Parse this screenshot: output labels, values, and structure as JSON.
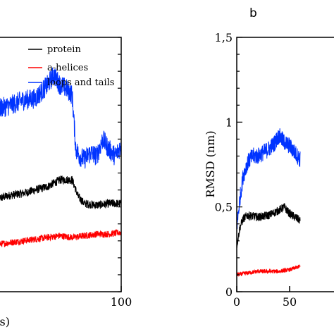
{
  "chart_data": [
    {
      "type": "line",
      "panel": "a",
      "title": "",
      "xlabel": "(ns)",
      "ylabel": "",
      "xlim": [
        0,
        100
      ],
      "ylim": [
        0,
        1.5
      ],
      "x_ticks": [
        100
      ],
      "x_tick_labels": [
        "100"
      ],
      "y_ticks": [],
      "y_tick_labels": [],
      "grid": false,
      "legend": {
        "placement": "top-right",
        "entries": [
          "protein",
          "a-helices",
          "loops and tails"
        ]
      },
      "series": [
        {
          "name": "protein",
          "color": "#000000",
          "x": [
            0,
            10,
            20,
            30,
            40,
            50,
            60,
            65,
            70,
            80,
            90,
            100
          ],
          "y": [
            0.55,
            0.57,
            0.58,
            0.6,
            0.62,
            0.66,
            0.66,
            0.56,
            0.52,
            0.51,
            0.52,
            0.52
          ],
          "noise": 0.025
        },
        {
          "name": "a-helices",
          "color": "#ff0000",
          "x": [
            0,
            10,
            20,
            30,
            40,
            50,
            60,
            70,
            80,
            90,
            100
          ],
          "y": [
            0.28,
            0.29,
            0.3,
            0.31,
            0.32,
            0.33,
            0.32,
            0.33,
            0.34,
            0.34,
            0.35
          ],
          "noise": 0.02
        },
        {
          "name": "loops and tails",
          "color": "#0033ff",
          "x": [
            0,
            10,
            20,
            30,
            40,
            45,
            50,
            55,
            60,
            63,
            66,
            70,
            75,
            80,
            85,
            90,
            95,
            100
          ],
          "y": [
            1.08,
            1.1,
            1.13,
            1.14,
            1.22,
            1.28,
            1.22,
            1.2,
            1.16,
            0.84,
            0.8,
            0.78,
            0.82,
            0.8,
            0.9,
            0.84,
            0.8,
            0.86
          ],
          "noise": 0.06
        }
      ]
    },
    {
      "type": "line",
      "panel": "b",
      "title": "",
      "xlabel": "",
      "ylabel": "RMSD (nm)",
      "xlim": [
        0,
        100
      ],
      "ylim": [
        0,
        1.5
      ],
      "x_ticks": [
        0,
        50
      ],
      "x_tick_labels": [
        "0",
        "50"
      ],
      "y_ticks": [
        0,
        0.5,
        1,
        1.5
      ],
      "y_tick_labels": [
        "0",
        "0,5",
        "1",
        "1,5"
      ],
      "grid": false,
      "series": [
        {
          "name": "protein",
          "color": "#000000",
          "x": [
            0,
            3,
            6,
            10,
            20,
            30,
            40,
            45,
            50,
            55,
            60
          ],
          "y": [
            0.27,
            0.38,
            0.43,
            0.45,
            0.44,
            0.45,
            0.48,
            0.5,
            0.46,
            0.44,
            0.42
          ],
          "noise": 0.025
        },
        {
          "name": "a-helices",
          "color": "#ff0000",
          "x": [
            0,
            10,
            20,
            30,
            40,
            50,
            60
          ],
          "y": [
            0.1,
            0.11,
            0.12,
            0.12,
            0.12,
            0.13,
            0.15
          ],
          "noise": 0.012
        },
        {
          "name": "loops and tails",
          "color": "#0033ff",
          "x": [
            0,
            3,
            6,
            10,
            15,
            20,
            30,
            35,
            40,
            45,
            50,
            55,
            60
          ],
          "y": [
            0.38,
            0.55,
            0.68,
            0.76,
            0.8,
            0.8,
            0.84,
            0.87,
            0.92,
            0.88,
            0.86,
            0.82,
            0.78
          ],
          "noise": 0.05
        }
      ]
    }
  ],
  "panels": {
    "b_letter": "b"
  }
}
